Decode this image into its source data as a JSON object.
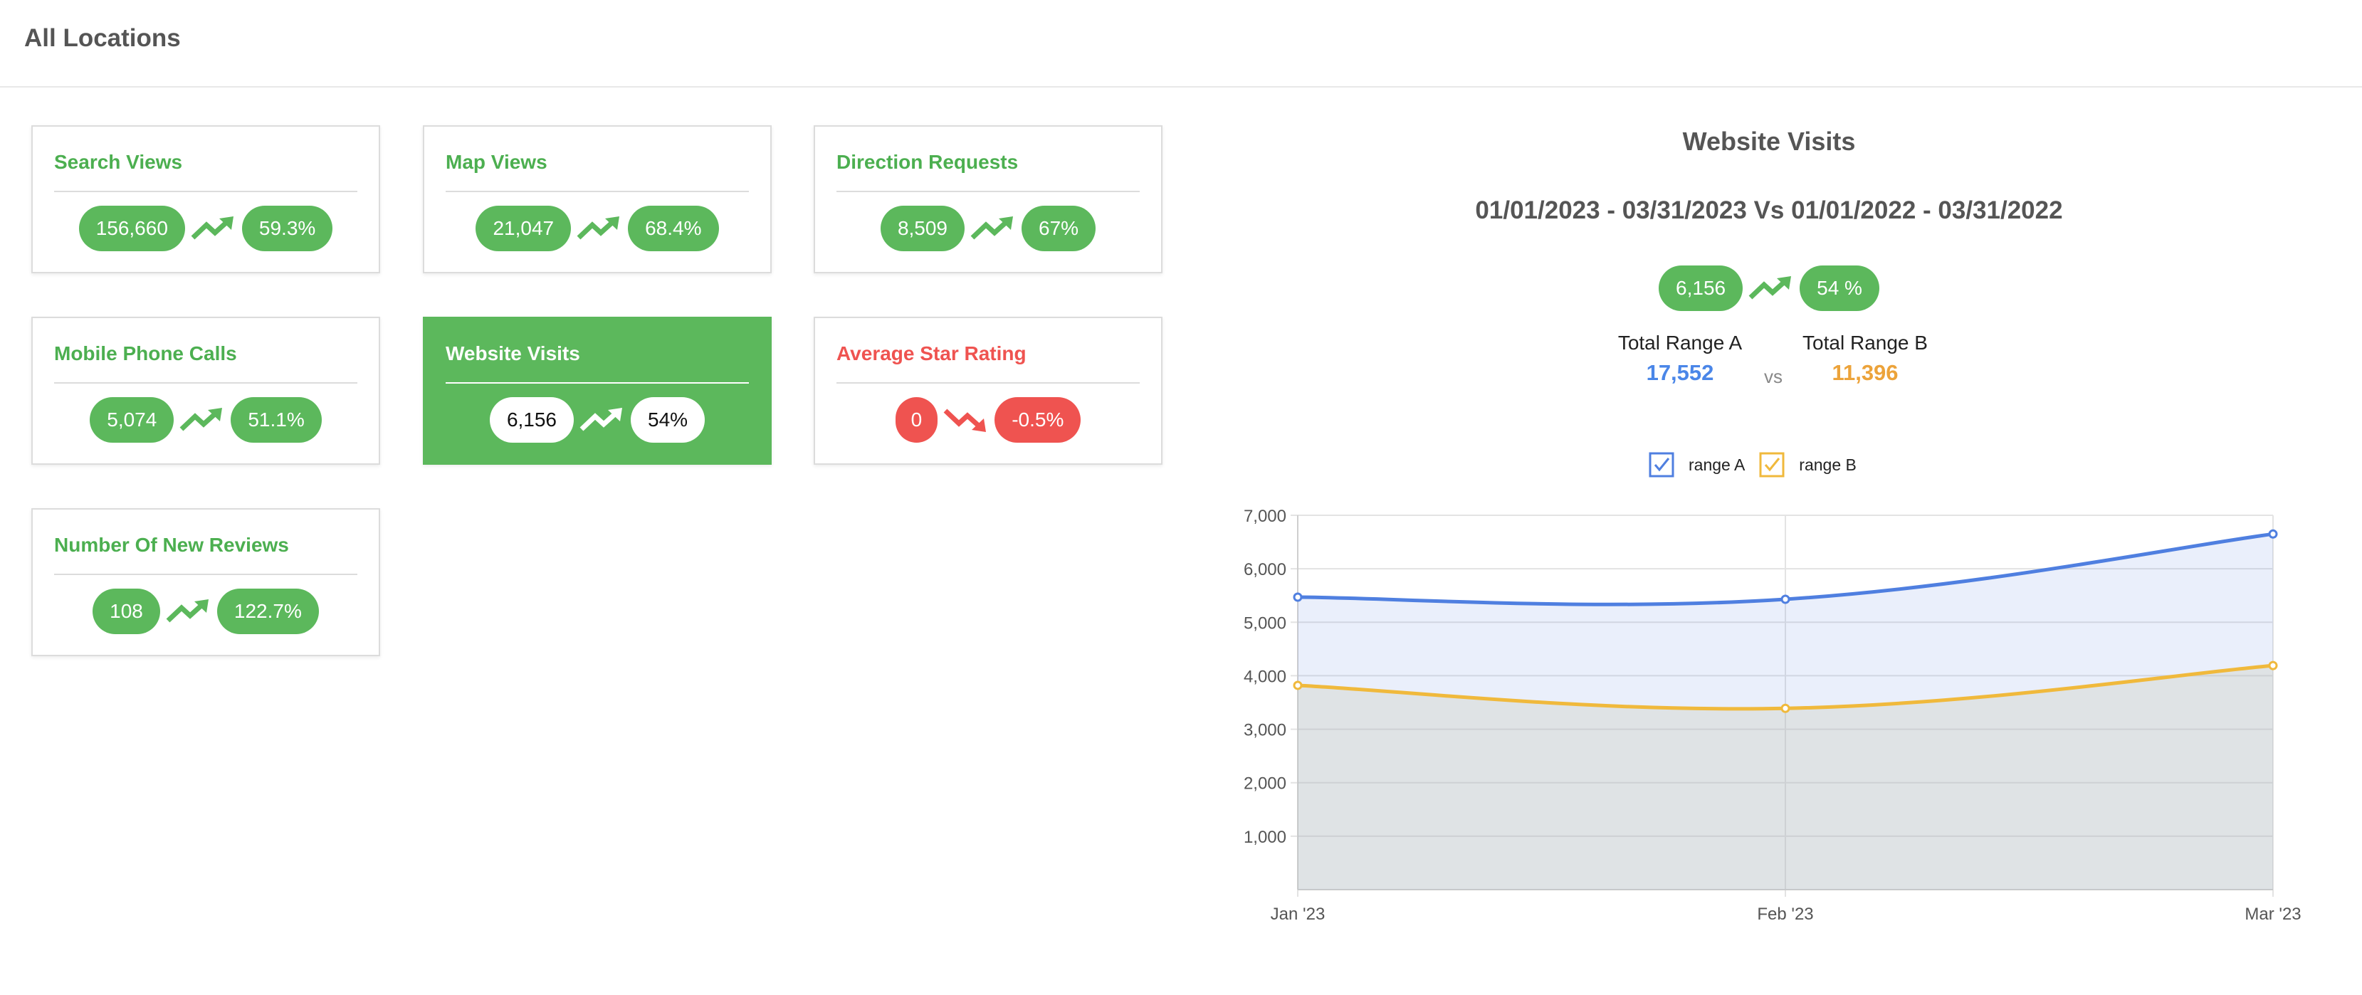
{
  "page": {
    "title": "All Locations"
  },
  "cards": [
    {
      "title": "Search Views",
      "value": "156,660",
      "change": "59.3%"
    },
    {
      "title": "Map Views",
      "value": "21,047",
      "change": "68.4%"
    },
    {
      "title": "Direction Requests",
      "value": "8,509",
      "change": "67%"
    },
    {
      "title": "Mobile Phone Calls",
      "value": "5,074",
      "change": "51.1%"
    },
    {
      "title": "Website Visits",
      "value": "6,156",
      "change": "54%"
    },
    {
      "title": "Average Star Rating",
      "value": "0",
      "change": "-0.5%"
    },
    {
      "title": "Number Of New Reviews",
      "value": "108",
      "change": "122.7%"
    }
  ],
  "detail": {
    "title": "Website Visits",
    "date_range": "01/01/2023 - 03/31/2023 Vs 01/01/2022 - 03/31/2022",
    "value": "6,156",
    "change": "54 %",
    "total_a_label": "Total Range A",
    "total_a_value": "17,552",
    "vs": "vs",
    "total_b_label": "Total Range B",
    "total_b_value": "11,396",
    "legend_a": "range A",
    "legend_b": "range B"
  },
  "colors": {
    "green": "#5cb85c",
    "red": "#ef5350",
    "range_a": "#4f7fe0",
    "range_b": "#f0b93c",
    "grey_text": "#555555"
  },
  "chart_data": {
    "type": "area",
    "categories": [
      "Jan '23",
      "Feb '23",
      "Mar '23"
    ],
    "series": [
      {
        "name": "range A",
        "values": [
          5470,
          5430,
          6650
        ]
      },
      {
        "name": "range B",
        "values": [
          3820,
          3390,
          4190
        ]
      }
    ],
    "ylim": [
      0,
      7000
    ],
    "yticks": [
      "1,000",
      "2,000",
      "3,000",
      "4,000",
      "5,000",
      "6,000",
      "7,000"
    ],
    "grid": true
  }
}
